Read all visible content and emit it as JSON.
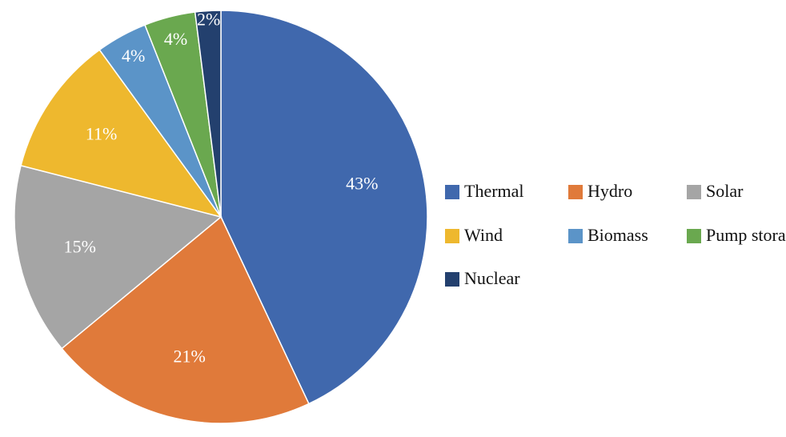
{
  "chart_data": {
    "type": "pie",
    "categories": [
      "Thermal",
      "Hydro",
      "Solar",
      "Wind",
      "Biomass",
      "Pump storage",
      "Nuclear"
    ],
    "values": [
      43,
      21,
      15,
      11,
      4,
      4,
      2
    ],
    "value_labels": [
      "43%",
      "21%",
      "15%",
      "11%",
      "4%",
      "4%",
      "2%"
    ],
    "colors": [
      "#4068ad",
      "#e07a3a",
      "#a5a5a5",
      "#eeb82e",
      "#5b94c8",
      "#6aa84f",
      "#23406e"
    ],
    "legend": "right"
  }
}
